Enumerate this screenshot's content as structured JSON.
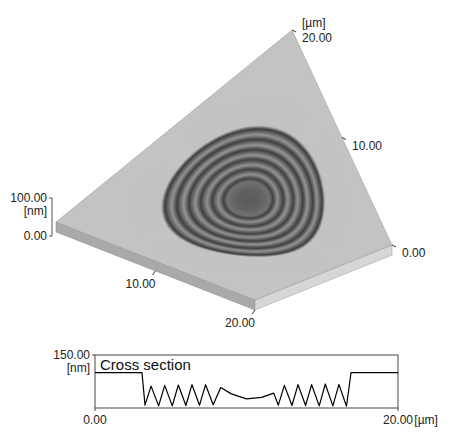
{
  "chart_data": [
    {
      "type": "surface",
      "xlim": [
        0,
        20
      ],
      "ylim": [
        0,
        20
      ],
      "zlim": [
        0,
        100
      ],
      "xticks": [
        {
          "value": 10,
          "label": "10.00"
        },
        {
          "value": 20,
          "label": "20.00"
        }
      ],
      "yticks": [
        {
          "value": 0,
          "label": "0.00"
        },
        {
          "value": 10,
          "label": "10.00"
        },
        {
          "value": 20,
          "label": "20.00"
        }
      ],
      "zticks": [
        {
          "value": 0,
          "label": "0.00"
        },
        {
          "value": 100,
          "label": "100.00"
        }
      ],
      "ylabel": "[µm]",
      "zlabel": "[nm]"
    },
    {
      "type": "line",
      "title": "Cross section",
      "x": [
        0,
        3.1,
        3.3,
        3.7,
        4.2,
        4.6,
        5.1,
        5.5,
        6.0,
        6.4,
        6.9,
        7.3,
        7.8,
        8.3,
        9.0,
        10.0,
        11.0,
        11.8,
        12.1,
        12.5,
        13.0,
        13.4,
        13.9,
        14.3,
        14.8,
        15.2,
        15.7,
        16.1,
        16.6,
        16.9,
        20
      ],
      "values": [
        100,
        100,
        8,
        62,
        6,
        64,
        6,
        65,
        7,
        66,
        8,
        66,
        9,
        58,
        40,
        26,
        30,
        42,
        8,
        64,
        7,
        66,
        7,
        66,
        6,
        68,
        6,
        67,
        5,
        100,
        100
      ],
      "color": "#000000",
      "xlim": [
        0,
        20
      ],
      "ylim": [
        0,
        150
      ],
      "xticks": [
        {
          "value": 0,
          "label": "0.00"
        },
        {
          "value": 20,
          "label": "20.00"
        }
      ],
      "yticks": [
        {
          "value": 150,
          "label": "150.00"
        }
      ],
      "xlabel": "[µm]",
      "ylabel": "[nm]"
    }
  ]
}
